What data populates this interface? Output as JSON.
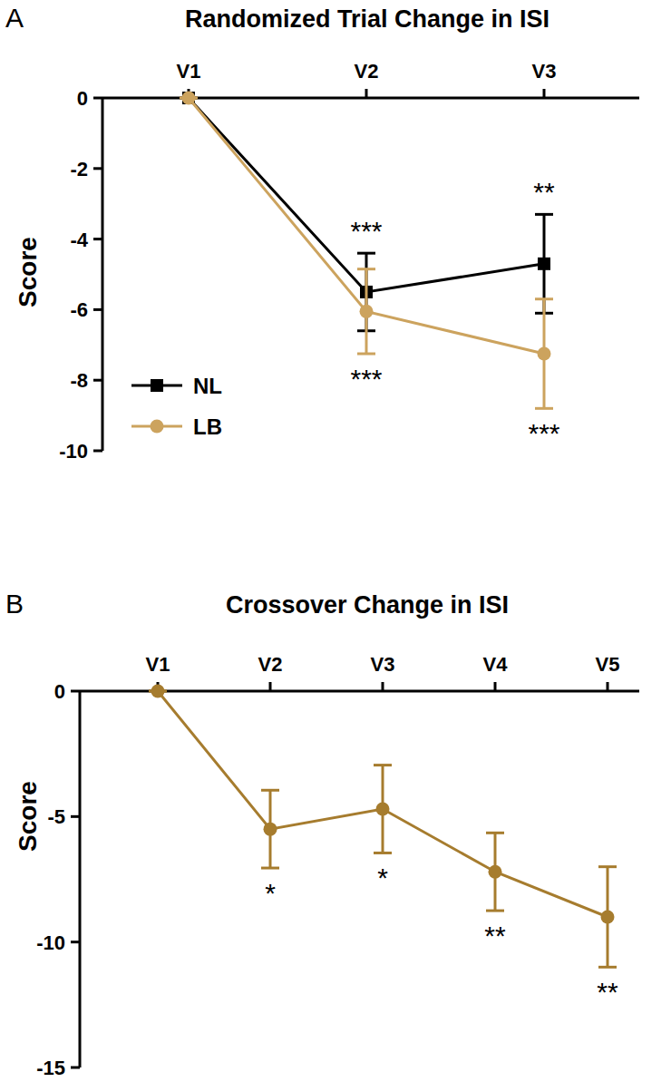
{
  "chart_data": [
    {
      "type": "line",
      "panel": "A",
      "title": "Randomized Trial Change in ISI",
      "y_label": "Score",
      "categories": [
        "V1",
        "V2",
        "V3"
      ],
      "ylim": [
        -10,
        0
      ],
      "yticks": [
        0,
        -2,
        -4,
        -6,
        -8,
        -10
      ],
      "legend": "lower left",
      "series": [
        {
          "name": "NL",
          "color": "#000000",
          "marker": "square",
          "values": [
            0,
            -5.5,
            -4.7
          ],
          "errors": [
            0,
            1.1,
            1.4
          ],
          "significance": [
            null,
            "***",
            "**"
          ]
        },
        {
          "name": "LB",
          "color": "#cca35e",
          "marker": "circle",
          "values": [
            0,
            -6.05,
            -7.25
          ],
          "errors": [
            0,
            1.2,
            1.55
          ],
          "significance": [
            null,
            "***",
            "***"
          ]
        }
      ]
    },
    {
      "type": "line",
      "panel": "B",
      "title": "Crossover Change in ISI",
      "y_label": "Score",
      "categories": [
        "V1",
        "V2",
        "V3",
        "V4",
        "V5"
      ],
      "ylim": [
        -15,
        0
      ],
      "yticks": [
        0,
        -5,
        -10,
        -15
      ],
      "series": [
        {
          "color": "#a67c2e",
          "marker": "circle",
          "values": [
            0,
            -5.5,
            -4.7,
            -7.2,
            -9.0
          ],
          "errors": [
            0,
            1.55,
            1.75,
            1.55,
            2.0
          ],
          "significance": [
            null,
            "*",
            "*",
            "**",
            "**"
          ]
        }
      ]
    }
  ]
}
